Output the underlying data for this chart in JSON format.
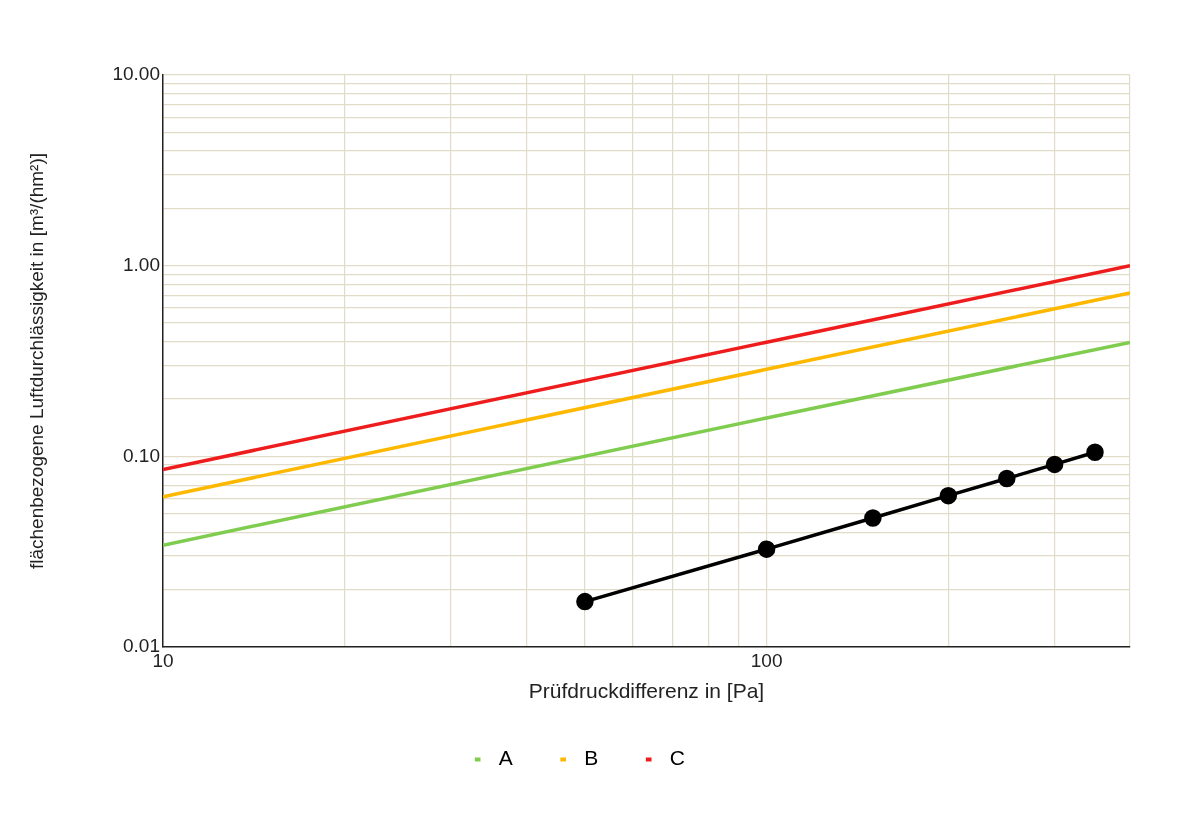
{
  "chart_data": {
    "type": "line",
    "xlabel": "Prüfdruckdifferenz in [Pa]",
    "ylabel": "flächenbezogene Luftdurchlässigkeit in [m³/(hm²)]",
    "log": "xy",
    "grid": true,
    "legend": "bottom",
    "xlim": [
      10,
      400
    ],
    "ylim": [
      0.01,
      10
    ],
    "xticks": [
      {
        "value": 10,
        "label": "10"
      },
      {
        "value": 20,
        "label": null
      },
      {
        "value": 30,
        "label": null
      },
      {
        "value": 40,
        "label": null
      },
      {
        "value": 50,
        "label": null
      },
      {
        "value": 60,
        "label": null
      },
      {
        "value": 70,
        "label": null
      },
      {
        "value": 80,
        "label": null
      },
      {
        "value": 90,
        "label": null
      },
      {
        "value": 100,
        "label": "100"
      },
      {
        "value": 200,
        "label": null
      },
      {
        "value": 300,
        "label": null
      },
      {
        "value": 400,
        "label": null
      }
    ],
    "yticks": [
      {
        "value": 0.01,
        "label": "0.01"
      },
      {
        "value": 0.02,
        "label": null
      },
      {
        "value": 0.03,
        "label": null
      },
      {
        "value": 0.04,
        "label": null
      },
      {
        "value": 0.05,
        "label": null
      },
      {
        "value": 0.06,
        "label": null
      },
      {
        "value": 0.07,
        "label": null
      },
      {
        "value": 0.08,
        "label": null
      },
      {
        "value": 0.09,
        "label": null
      },
      {
        "value": 0.1,
        "label": "0.10"
      },
      {
        "value": 0.2,
        "label": null
      },
      {
        "value": 0.3,
        "label": null
      },
      {
        "value": 0.4,
        "label": null
      },
      {
        "value": 0.5,
        "label": null
      },
      {
        "value": 0.6,
        "label": null
      },
      {
        "value": 0.7,
        "label": null
      },
      {
        "value": 0.8,
        "label": null
      },
      {
        "value": 0.9,
        "label": null
      },
      {
        "value": 1,
        "label": "1.00"
      },
      {
        "value": 2,
        "label": null
      },
      {
        "value": 3,
        "label": null
      },
      {
        "value": 4,
        "label": null
      },
      {
        "value": 5,
        "label": null
      },
      {
        "value": 6,
        "label": null
      },
      {
        "value": 7,
        "label": null
      },
      {
        "value": 8,
        "label": null
      },
      {
        "value": 9,
        "label": null
      },
      {
        "value": 10,
        "label": "10.00"
      }
    ],
    "series": [
      {
        "color": "#000000",
        "marker": "circle",
        "x": [
          50,
          100,
          150,
          200,
          250,
          300,
          350
        ],
        "values": [
          0.0173,
          0.0326,
          0.0475,
          0.0622,
          0.0765,
          0.0907,
          0.105
        ]
      },
      {
        "name": "A",
        "color": "#7fcc4f",
        "marker": "none",
        "x": [
          10,
          100,
          400
        ],
        "values": [
          0.0342,
          0.159,
          0.396
        ]
      },
      {
        "name": "B",
        "color": "#ffb800",
        "marker": "none",
        "x": [
          10,
          100,
          400
        ],
        "values": [
          0.0614,
          0.286,
          0.72
        ]
      },
      {
        "name": "C",
        "color": "#ee1c1c",
        "marker": "none",
        "x": [
          10,
          100,
          400
        ],
        "values": [
          0.0853,
          0.397,
          1.0
        ]
      }
    ]
  }
}
